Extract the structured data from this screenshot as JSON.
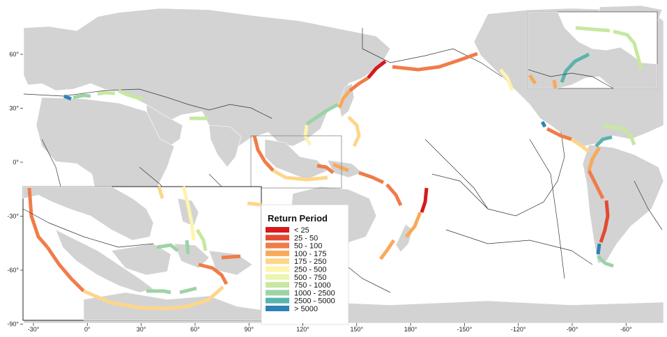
{
  "map": {
    "colors": {
      "ocean": "#ffffff",
      "land": "#d3d3d3",
      "plate_boundary": "#333333",
      "frame": "#333333"
    },
    "x_ticks": [
      "-30°",
      "0°",
      "30°",
      "60°",
      "90°",
      "120°",
      "150°",
      "180°",
      "-150°",
      "-120°",
      "-90°",
      "-60°"
    ],
    "y_ticks": [
      "60°",
      "30°",
      "0°",
      "-30°",
      "-60°",
      "-90°"
    ]
  },
  "legend": {
    "title": "Return Period",
    "items": [
      {
        "label": "< 25",
        "color": "#d7191c"
      },
      {
        "label": "25 - 50",
        "color": "#e34a33"
      },
      {
        "label": "50 - 100",
        "color": "#f07c4a"
      },
      {
        "label": "100 - 175",
        "color": "#f9a95a"
      },
      {
        "label": "175 - 250",
        "color": "#fed68a"
      },
      {
        "label": "250 - 500",
        "color": "#fef4ae"
      },
      {
        "label": "500 - 750",
        "color": "#eaf5ae"
      },
      {
        "label": "750 - 1000",
        "color": "#c7e8a0"
      },
      {
        "label": "1000 - 2500",
        "color": "#9dd3a6"
      },
      {
        "label": "2500 - 5000",
        "color": "#5ab4ac"
      },
      {
        "label": "> 5000",
        "color": "#2b83ba"
      }
    ]
  }
}
